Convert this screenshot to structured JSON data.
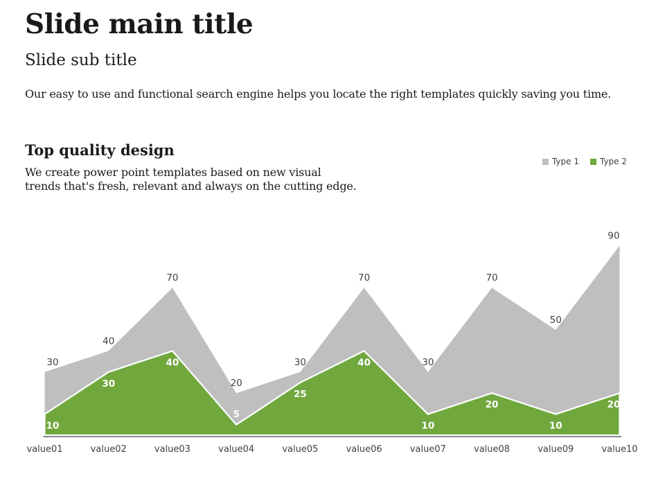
{
  "slide": {
    "main_title": "Slide main title",
    "sub_title": "Slide sub title",
    "intro": "Our easy to use and functional search engine  helps you locate the right templates quickly saving you time.",
    "section": {
      "heading": "Top quality design",
      "body": "We create power point templates based on new visual\ntrends that's fresh, relevant and always on the cutting edge."
    }
  },
  "legend": {
    "items": [
      {
        "label": "Type 1",
        "color": "#BFBFBF"
      },
      {
        "label": "Type 2",
        "color": "#71A83E"
      }
    ]
  },
  "chart_data": {
    "type": "area",
    "title": "",
    "categories": [
      "value01",
      "value02",
      "value03",
      "value04",
      "value05",
      "value06",
      "value07",
      "value08",
      "value09",
      "value10"
    ],
    "series": [
      {
        "name": "Type 1",
        "color": "#BFBFBF",
        "label_color": "#404040",
        "values": [
          30,
          40,
          70,
          20,
          30,
          70,
          30,
          70,
          50,
          90
        ]
      },
      {
        "name": "Type 2",
        "color": "#71A83E",
        "label_color": "#FFFFFF",
        "stroke": "#FFFFFF",
        "values": [
          10,
          30,
          40,
          5,
          25,
          40,
          10,
          20,
          10,
          20
        ]
      }
    ],
    "xlabel": "",
    "ylabel": "",
    "ylim": [
      0,
      100
    ],
    "grid": false,
    "y_axis_visible": false,
    "data_labels": true,
    "legend_position": "top-right",
    "axis_line_color": "#404040",
    "tick_label_color": "#404040"
  }
}
